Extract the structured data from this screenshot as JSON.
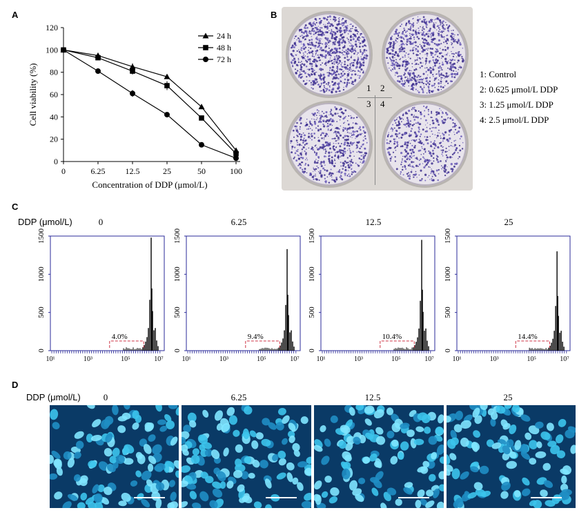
{
  "panels": {
    "a": "A",
    "b": "B",
    "c": "C",
    "d": "D"
  },
  "chart_data": [
    {
      "type": "line",
      "ylabel": "Cell viability (%)",
      "xlabel": "Concentration of DDP (μmol/L)",
      "x_ticks": [
        "0",
        "6.25",
        "12.5",
        "25",
        "50",
        "100"
      ],
      "y_ticks": [
        "0",
        "20",
        "40",
        "60",
        "80",
        "100",
        "120"
      ],
      "ylim": [
        0,
        120
      ],
      "legend_position": "top-right",
      "series": [
        {
          "name": "24 h",
          "marker": "triangle",
          "values": [
            100,
            95,
            85,
            76,
            49,
            10
          ],
          "errors": [
            1.5,
            2,
            3,
            2,
            2,
            1.5
          ]
        },
        {
          "name": "48 h",
          "marker": "square",
          "values": [
            100,
            93,
            81,
            68,
            39,
            7
          ],
          "errors": [
            1.5,
            2,
            3,
            4,
            2,
            1.5
          ]
        },
        {
          "name": "72 h",
          "marker": "circle",
          "values": [
            100,
            81,
            61,
            42,
            15,
            3
          ],
          "errors": [
            1.5,
            2,
            3,
            2,
            2,
            1
          ]
        }
      ]
    },
    {
      "type": "histogram",
      "row_label": "DDP (μmol/L)",
      "y_ticks": [
        "0",
        "500",
        "1000",
        "1500"
      ],
      "x_ticks": [
        "10¹",
        "10³",
        "10⁵",
        "10⁷"
      ],
      "ylim": [
        0,
        1500
      ],
      "panels": [
        {
          "dose": "0",
          "subg1": "4.0%",
          "peak": 1480
        },
        {
          "dose": "6.25",
          "subg1": "9.4%",
          "peak": 1330
        },
        {
          "dose": "12.5",
          "subg1": "10.4%",
          "peak": 1450
        },
        {
          "dose": "25",
          "subg1": "14.4%",
          "peak": 1300
        }
      ]
    }
  ],
  "colony_plate": {
    "well_labels": [
      "1",
      "2",
      "3",
      "4"
    ],
    "legend": [
      "1: Control",
      "2: 0.625 μmol/L DDP",
      "3: 1.25 μmol/L DDP",
      "4: 2.5 μmol/L DDP"
    ]
  },
  "microscopy": {
    "row_label": "DDP (μmol/L)",
    "doses": [
      "0",
      "6.25",
      "12.5",
      "25"
    ]
  },
  "colors": {
    "plate_bg": "#dcd8d4",
    "colony": "#4a3a9a",
    "axis_blue": "#2a2a9a",
    "gate": "#cc3344",
    "nucleus": "#2fb8e0"
  }
}
